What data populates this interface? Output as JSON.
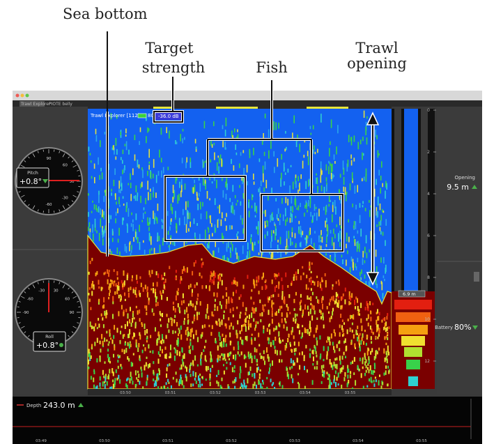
{
  "annotations": {
    "sea_bottom": "Sea bottom",
    "target_strength": [
      "Target",
      "strength"
    ],
    "fish": "Fish",
    "trawl_opening": [
      "Trawl",
      "opening"
    ]
  },
  "window": {
    "tabs": [
      "Trawl Explorer",
      "PIOTE belly"
    ]
  },
  "echogram": {
    "source": "Trawl Explorer [112]",
    "battery": "80%",
    "target_strength": "-36.0 dB",
    "depth_scale": [
      "0",
      "2",
      "4",
      "6",
      "8",
      "10",
      "12"
    ],
    "trawl_depth": "6.9 m",
    "time_labels": [
      "03:50",
      "03:51",
      "03:52",
      "03:53",
      "03:54",
      "03:55"
    ]
  },
  "gauges": [
    {
      "label": "Pitch",
      "value": "+0.8°",
      "dial_labels": [
        "90",
        "60",
        "30",
        "-30",
        "-60"
      ]
    },
    {
      "label": "Roll",
      "value": "+0.8°",
      "dial_labels": [
        "-90",
        "-60",
        "-30",
        "30",
        "60",
        "90"
      ]
    }
  ],
  "opening": {
    "label": "Opening",
    "value": "9.5 m"
  },
  "battery": {
    "label": "Battery",
    "value": "80%"
  },
  "depth": {
    "label": "Depth",
    "value": "243.0 m",
    "time_labels": [
      "03:49",
      "03:50",
      "03:51",
      "03:52",
      "03:53",
      "03:54",
      "03:55"
    ]
  }
}
